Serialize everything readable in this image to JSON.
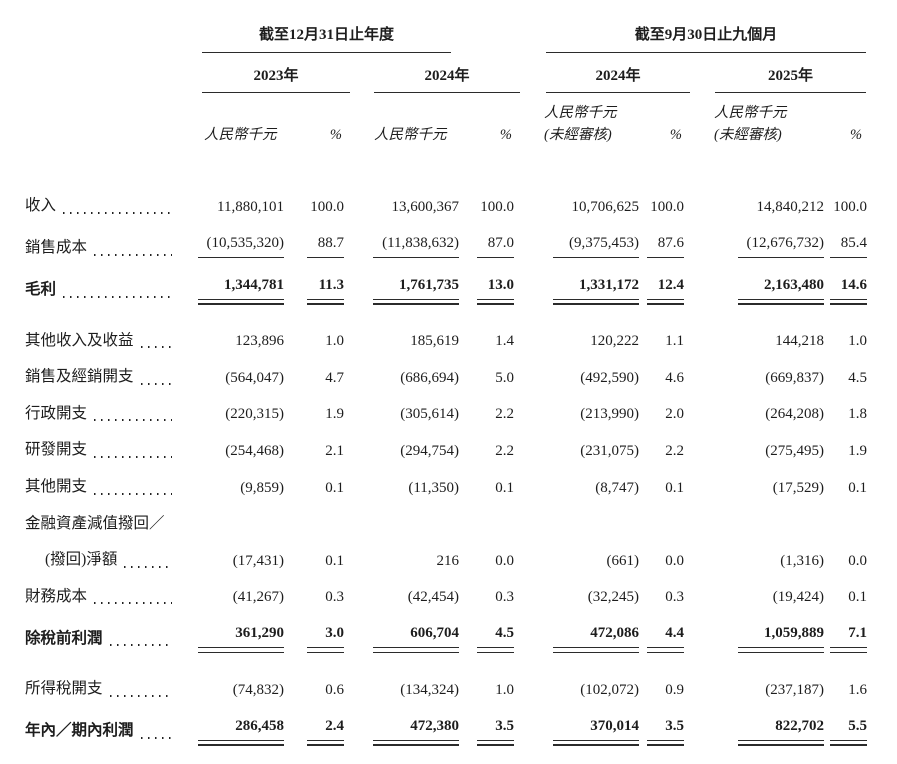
{
  "table": {
    "groups": [
      {
        "title": "截至12月31日止年度",
        "columns": [
          {
            "year": "2023年",
            "unit": "人民幣千元",
            "pct": "%",
            "note": ""
          },
          {
            "year": "2024年",
            "unit": "人民幣千元",
            "pct": "%",
            "note": ""
          }
        ]
      },
      {
        "title": "截至9月30日止九個月",
        "columns": [
          {
            "year": "2024年",
            "unit": "人民幣千元",
            "pct": "%",
            "note": "(未經審核)"
          },
          {
            "year": "2025年",
            "unit": "人民幣千元",
            "pct": "%",
            "note": "(未經審核)"
          }
        ]
      }
    ],
    "rows": [
      {
        "label": "收入",
        "values": [
          "11,880,101",
          "100.0",
          "13,600,367",
          "100.0",
          "10,706,625",
          "100.0",
          "14,840,212",
          "100.0"
        ]
      },
      {
        "label": "銷售成本",
        "rule": "single",
        "values": [
          "(10,535,320)",
          "88.7",
          "(11,838,632)",
          "87.0",
          "(9,375,453)",
          "87.6",
          "(12,676,732)",
          "85.4"
        ]
      },
      {
        "label": "毛利",
        "emphasis": true,
        "rule": "double",
        "values": [
          "1,344,781",
          "11.3",
          "1,761,735",
          "13.0",
          "1,331,172",
          "12.4",
          "2,163,480",
          "14.6"
        ]
      },
      {
        "label": "其他收入及收益",
        "gap_above": true,
        "values": [
          "123,896",
          "1.0",
          "185,619",
          "1.4",
          "120,222",
          "1.1",
          "144,218",
          "1.0"
        ]
      },
      {
        "label": "銷售及經銷開支",
        "values": [
          "(564,047)",
          "4.7",
          "(686,694)",
          "5.0",
          "(492,590)",
          "4.6",
          "(669,837)",
          "4.5"
        ]
      },
      {
        "label": "行政開支",
        "values": [
          "(220,315)",
          "1.9",
          "(305,614)",
          "2.2",
          "(213,990)",
          "2.0",
          "(264,208)",
          "1.8"
        ]
      },
      {
        "label": "研發開支",
        "values": [
          "(254,468)",
          "2.1",
          "(294,754)",
          "2.2",
          "(231,075)",
          "2.2",
          "(275,495)",
          "1.9"
        ]
      },
      {
        "label": "其他開支",
        "values": [
          "(9,859)",
          "0.1",
          "(11,350)",
          "0.1",
          "(8,747)",
          "0.1",
          "(17,529)",
          "0.1"
        ]
      },
      {
        "label": "金融資產減值撥回／",
        "values": null
      },
      {
        "label": "(撥回)淨額",
        "indent": true,
        "values": [
          "(17,431)",
          "0.1",
          "216",
          "0.0",
          "(661)",
          "0.0",
          "(1,316)",
          "0.0"
        ]
      },
      {
        "label": "財務成本",
        "values": [
          "(41,267)",
          "0.3",
          "(42,454)",
          "0.3",
          "(32,245)",
          "0.3",
          "(19,424)",
          "0.1"
        ]
      },
      {
        "label": "除稅前利潤",
        "emphasis": true,
        "rule": "double",
        "values": [
          "361,290",
          "3.0",
          "606,704",
          "4.5",
          "472,086",
          "4.4",
          "1,059,889",
          "7.1"
        ]
      },
      {
        "label": "所得稅開支",
        "gap_above": true,
        "values": [
          "(74,832)",
          "0.6",
          "(134,324)",
          "1.0",
          "(102,072)",
          "0.9",
          "(237,187)",
          "1.6"
        ]
      },
      {
        "label": "年內／期內利潤",
        "emphasis": true,
        "rule": "double",
        "values": [
          "286,458",
          "2.4",
          "472,380",
          "3.5",
          "370,014",
          "3.5",
          "822,702",
          "5.5"
        ]
      }
    ]
  }
}
